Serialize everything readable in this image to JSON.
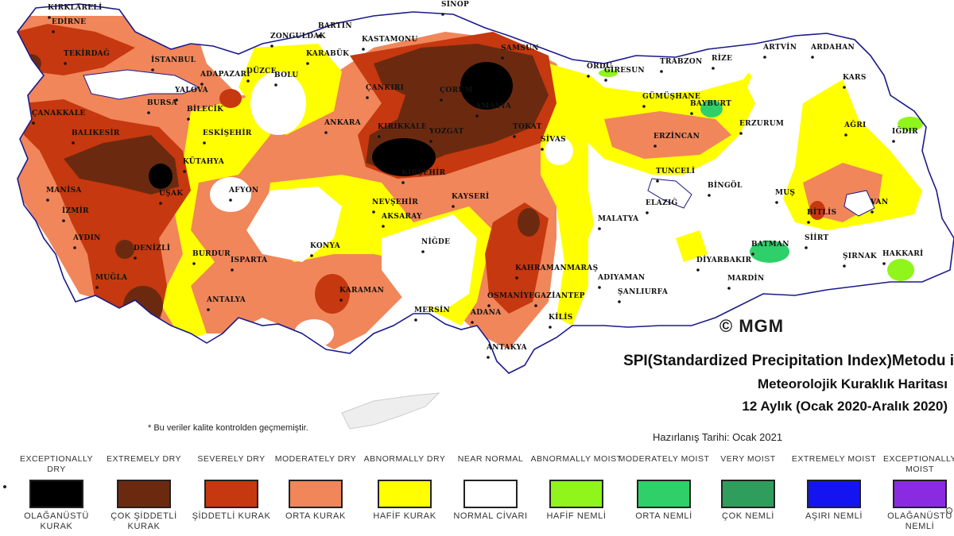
{
  "title": {
    "line1": "SPI(Standardized Precipitation Index)Metodu i",
    "line2": "Meteorolojik Kuraklık Haritası",
    "line3": "12 Aylık (Ocak 2020-Aralık 2020)"
  },
  "prepared": "Hazırlanış Tarihi: Ocak 2021",
  "note": "* Bu veriler kalite kontrolden geçmemiştir.",
  "copyright": "© MGM",
  "legend": [
    {
      "en": "EXCEPTIONALLY DRY",
      "tr": "OLAĞANÜSTÜ KURAK",
      "color": "#000000"
    },
    {
      "en": "EXTREMELY DRY",
      "tr": "ÇOK ŞİDDETLİ KURAK",
      "color": "#6b2a10"
    },
    {
      "en": "SEVERELY DRY",
      "tr": "ŞİDDETLİ KURAK",
      "color": "#c6380f"
    },
    {
      "en": "MODERATELY DRY",
      "tr": "ORTA KURAK",
      "color": "#f0865a"
    },
    {
      "en": "ABNORMALLY DRY",
      "tr": "HAFİF KURAK",
      "color": "#ffff00"
    },
    {
      "en": "NEAR NORMAL",
      "tr": "NORMAL CİVARI",
      "color": "#ffffff"
    },
    {
      "en": "ABNORMALLY MOIST",
      "tr": "HAFİF NEMLİ",
      "color": "#8ff51a"
    },
    {
      "en": "MODERATELY MOIST",
      "tr": "ORTA NEMLİ",
      "color": "#2fd06a"
    },
    {
      "en": "VERY MOIST",
      "tr": "ÇOK NEMLİ",
      "color": "#2f9e5c"
    },
    {
      "en": "EXTREMELY MOIST",
      "tr": "AŞIRI NEMLİ",
      "color": "#1414f0"
    },
    {
      "en": "EXCEPTIONALLY MOIST",
      "tr": "OLAĞANÜSTÜ NEMLİ",
      "color": "#8a2be2"
    }
  ],
  "cities": [
    "SİNOP",
    "KIRKLARELİ",
    "EDİRNE",
    "BARTIN",
    "ZONGULDAK",
    "KASTAMONU",
    "KARABÜK",
    "TEKİRDAĞ",
    "İSTANBUL",
    "SAMSUN",
    "ORDU",
    "GİRESUN",
    "TRABZON",
    "RİZE",
    "ARTVİN",
    "ARDAHAN",
    "ADAPAZARI",
    "DÜZCE",
    "BOLU",
    "YALOVA",
    "BURSA",
    "BİLECİK",
    "ÇANKIRI",
    "ÇORUM",
    "AMASYA",
    "TOKAT",
    "KARS",
    "ÇANAKKALE",
    "BALIKESİR",
    "ESKİŞEHİR",
    "ANKARA",
    "KIRIKKALE",
    "YOZGAT",
    "GÜMÜŞHANE",
    "BAYBURT",
    "ERZURUM",
    "AĞRI",
    "IĞDIR",
    "SİVAS",
    "ERZİNCAN",
    "KÜTAHYA",
    "UŞAK",
    "MANİSA",
    "İZMİR",
    "AFYON",
    "KIRŞEHİR",
    "NEVŞEHİR",
    "KAYSERİ",
    "TUNCELİ",
    "BİNGÖL",
    "MUŞ",
    "BİTLİS",
    "VAN",
    "ELAZIĞ",
    "MALATYA",
    "AKSARAY",
    "NİĞDE",
    "KONYA",
    "AYDIN",
    "DENİZLİ",
    "BURDUR",
    "ISPARTA",
    "MUĞLA",
    "KARAMAN",
    "KAHRAMANMARAŞ",
    "ADIYAMAN",
    "DİYARBAKIR",
    "BATMAN",
    "SİİRT",
    "ŞIRNAK",
    "HAKKARİ",
    "ŞANLIURFA",
    "MARDİN",
    "OSMANİYE",
    "GAZİANTEP",
    "ADANA",
    "MERSİN",
    "ANTALYA",
    "KİLİS",
    "ANTAKYA"
  ]
}
